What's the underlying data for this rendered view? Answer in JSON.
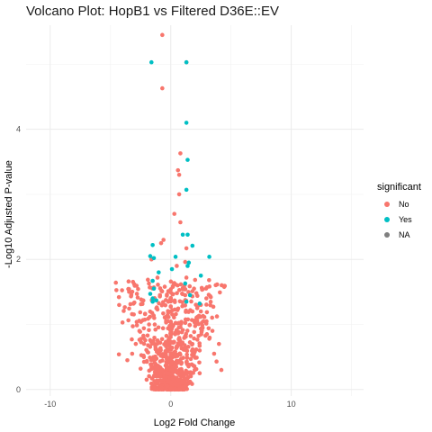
{
  "chart_data": {
    "type": "scatter",
    "title": "Volcano Plot: HopB1 vs Filtered D36E::EV",
    "xlabel": "Log2 Fold Change",
    "ylabel": "-Log10 Adjusted P-value",
    "xlim": [
      -12,
      16
    ],
    "ylim": [
      -0.1,
      5.6
    ],
    "x_ticks": [
      -10,
      0,
      10
    ],
    "x_tick_labels": [
      "-10",
      "0",
      "10"
    ],
    "y_ticks": [
      0,
      2,
      4
    ],
    "y_tick_labels": [
      "0",
      "2",
      "4"
    ],
    "grid": true,
    "legend": {
      "title": "significant",
      "position": "right",
      "entries": [
        {
          "label": "No",
          "color": "#F8766D"
        },
        {
          "label": "Yes",
          "color": "#00BFC4"
        },
        {
          "label": "NA",
          "color": "#7F7F7F"
        }
      ]
    },
    "series": [
      {
        "name": "No",
        "color": "#F8766D",
        "points": [
          [
            -0.7,
            5.45
          ],
          [
            -0.7,
            4.63
          ],
          [
            1.3,
            5.03
          ],
          [
            0.8,
            3.63
          ],
          [
            0.6,
            3.37
          ],
          [
            0.7,
            3.3
          ],
          [
            0.7,
            3.0
          ],
          [
            0.3,
            2.7
          ],
          [
            0.8,
            2.57
          ],
          [
            -0.6,
            2.3
          ],
          [
            -0.8,
            2.25
          ],
          [
            1.3,
            2.17
          ],
          [
            -1.6,
            2.0
          ],
          [
            1.2,
            1.96
          ],
          [
            0.5,
            1.9
          ],
          [
            -1.1,
            1.72
          ],
          [
            1.3,
            1.72
          ],
          [
            -0.5,
            1.58
          ],
          [
            1.0,
            1.56
          ],
          [
            -0.9,
            1.43
          ],
          [
            1.2,
            1.45
          ],
          [
            -0.2,
            1.35
          ],
          [
            2.5,
            1.3
          ],
          [
            1.8,
            1.2
          ],
          [
            2.5,
            1.2
          ],
          [
            -4.0,
            1.03
          ],
          [
            -1.8,
            1.0
          ],
          [
            2.2,
            1.05
          ],
          [
            -2.6,
            0.9
          ],
          [
            3.0,
            0.85
          ],
          [
            3.2,
            0.78
          ],
          [
            -2.9,
            0.7
          ],
          [
            4.0,
            0.7
          ],
          [
            -3.2,
            0.55
          ],
          [
            3.6,
            0.55
          ],
          [
            -4.3,
            0.54
          ],
          [
            -3.6,
            0.45
          ],
          [
            3.8,
            0.43
          ],
          [
            4.2,
            0.3
          ],
          [
            -2.5,
            0.32
          ],
          [
            -1.4,
            0.2
          ],
          [
            2.4,
            0.25
          ],
          [
            -2.0,
            0.15
          ],
          [
            1.6,
            0.12
          ],
          [
            0.0,
            0.02
          ]
        ]
      },
      {
        "name": "Yes",
        "color": "#00BFC4",
        "points": [
          [
            -1.6,
            5.03
          ],
          [
            1.3,
            5.03
          ],
          [
            1.3,
            4.1
          ],
          [
            1.4,
            3.53
          ],
          [
            1.3,
            3.07
          ],
          [
            1.4,
            2.38
          ],
          [
            1.0,
            2.38
          ],
          [
            -1.5,
            2.22
          ],
          [
            1.8,
            2.21
          ],
          [
            -1.7,
            2.05
          ],
          [
            -1.4,
            2.02
          ],
          [
            0.4,
            2.04
          ],
          [
            3.2,
            2.04
          ],
          [
            1.5,
            1.95
          ],
          [
            1.4,
            1.9
          ],
          [
            0.1,
            1.85
          ],
          [
            -1.0,
            1.8
          ],
          [
            2.5,
            1.75
          ],
          [
            -1.5,
            1.67
          ],
          [
            1.2,
            1.63
          ],
          [
            -1.4,
            1.55
          ],
          [
            -1.7,
            1.47
          ],
          [
            1.6,
            1.45
          ],
          [
            -1.5,
            1.4
          ],
          [
            -1.2,
            1.37
          ],
          [
            -1.5,
            1.35
          ],
          [
            1.3,
            1.35
          ],
          [
            2.4,
            1.32
          ]
        ]
      },
      {
        "name": "NA",
        "color": "#7F7F7F",
        "points": []
      }
    ],
    "dense_cloud": {
      "series": "No",
      "color": "#F8766D",
      "description_only_for_rendering": false,
      "y_max": 1.7
    }
  }
}
